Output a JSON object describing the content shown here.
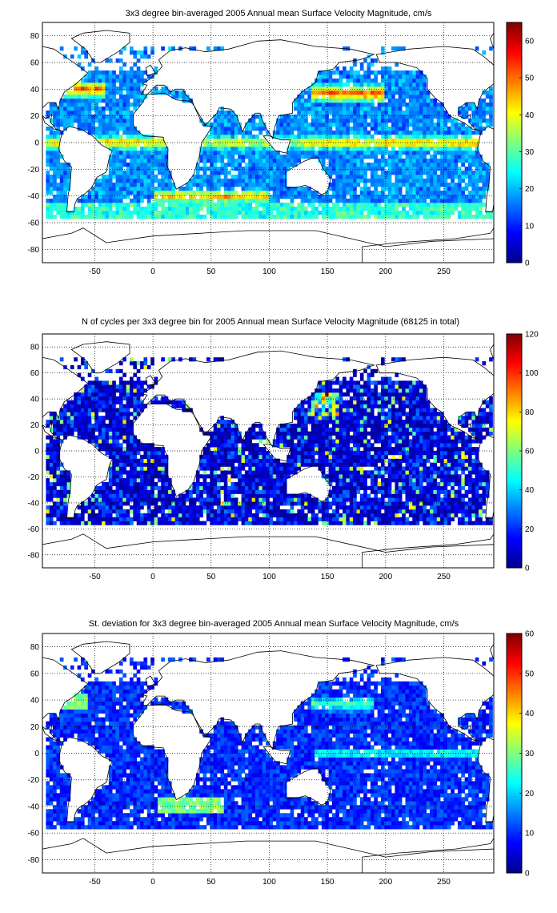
{
  "chart_data": [
    {
      "type": "heatmap",
      "title": "3x3 degree bin-averaged 2005 Annual mean Surface Velocity Magnitude, cm/s",
      "x_ticks": [
        -50,
        0,
        50,
        100,
        150,
        200,
        250
      ],
      "y_ticks": [
        80,
        60,
        40,
        20,
        0,
        -20,
        -40,
        -60,
        -80
      ],
      "xlim": [
        -95,
        293
      ],
      "ylim": [
        -90,
        90
      ],
      "grid": true,
      "colorbar": {
        "range": [
          0,
          65
        ],
        "ticks": [
          0,
          10,
          20,
          30,
          40,
          50,
          60
        ]
      },
      "colormap": "jet",
      "bin_size_deg": 3,
      "field": "velocity"
    },
    {
      "type": "heatmap",
      "title": "N of cycles per 3x3 degree bin for 2005 Annual mean Surface Velocity Magnitude (68125 in total)",
      "x_ticks": [
        -50,
        0,
        50,
        100,
        150,
        200,
        250
      ],
      "y_ticks": [
        80,
        60,
        40,
        20,
        0,
        -20,
        -40,
        -60,
        -80
      ],
      "xlim": [
        -95,
        293
      ],
      "ylim": [
        -90,
        90
      ],
      "grid": true,
      "colorbar": {
        "range": [
          0,
          120
        ],
        "ticks": [
          0,
          20,
          40,
          60,
          80,
          100,
          120
        ]
      },
      "colormap": "jet",
      "bin_size_deg": 3,
      "field": "count"
    },
    {
      "type": "heatmap",
      "title": "St. deviation for 3x3 degree bin-averaged 2005 Annual mean Surface Velocity Magnitude, cm/s",
      "x_ticks": [
        -50,
        0,
        50,
        100,
        150,
        200,
        250
      ],
      "y_ticks": [
        80,
        60,
        40,
        20,
        0,
        -20,
        -40,
        -60,
        -80
      ],
      "xlim": [
        -95,
        293
      ],
      "ylim": [
        -90,
        90
      ],
      "grid": true,
      "colorbar": {
        "range": [
          0,
          60
        ],
        "ticks": [
          0,
          10,
          20,
          30,
          40,
          50,
          60
        ]
      },
      "colormap": "jet",
      "bin_size_deg": 3,
      "field": "std"
    }
  ]
}
